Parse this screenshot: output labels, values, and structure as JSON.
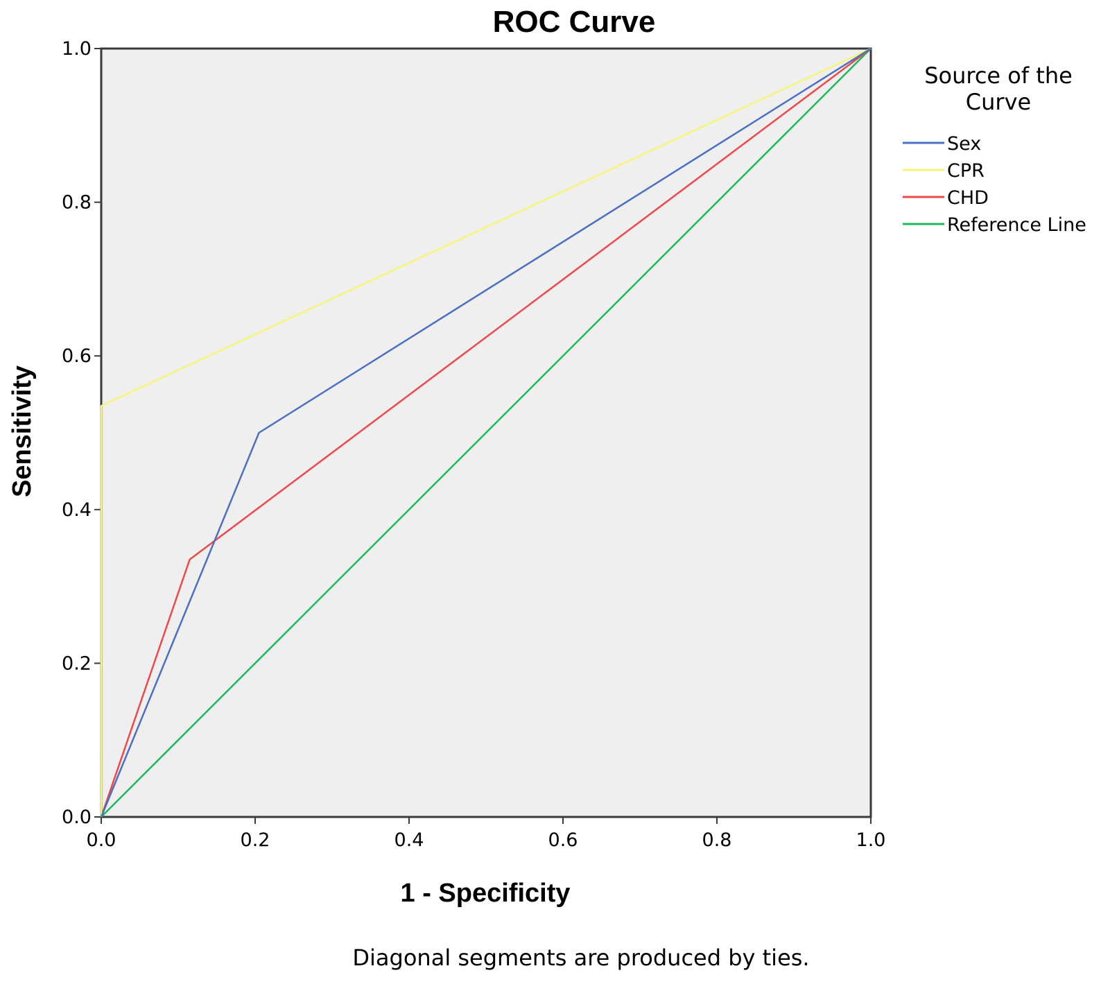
{
  "chart_data": {
    "type": "line",
    "title": "ROC Curve",
    "xlabel": "1 - Specificity",
    "ylabel": "Sensitivity",
    "xlim": [
      0,
      1
    ],
    "ylim": [
      0,
      1
    ],
    "x_ticks": [
      "0.0",
      "0.2",
      "0.4",
      "0.6",
      "0.8",
      "1.0"
    ],
    "y_ticks": [
      "0.0",
      "0.2",
      "0.4",
      "0.6",
      "0.8",
      "1.0"
    ],
    "grid": false,
    "legend": {
      "title_line1": "Source of the",
      "title_line2": "Curve",
      "placement": "right"
    },
    "series": [
      {
        "name": "Sex",
        "color": "#4a6fc4",
        "x": [
          0,
          0.205,
          1
        ],
        "y": [
          0,
          0.5,
          1
        ]
      },
      {
        "name": "CPR",
        "color": "#f5f57a",
        "x": [
          0,
          0,
          1
        ],
        "y": [
          0,
          0.535,
          1
        ]
      },
      {
        "name": "CHD",
        "color": "#f04848",
        "x": [
          0,
          0.115,
          1
        ],
        "y": [
          0,
          0.335,
          1
        ]
      },
      {
        "name": "Reference Line",
        "color": "#1fb85a",
        "x": [
          0,
          1
        ],
        "y": [
          0,
          1
        ]
      }
    ],
    "footnote": "Diagonal segments are produced by ties."
  },
  "colors": {
    "plot_background": "#efefef",
    "frame": "#3a3a3a"
  }
}
